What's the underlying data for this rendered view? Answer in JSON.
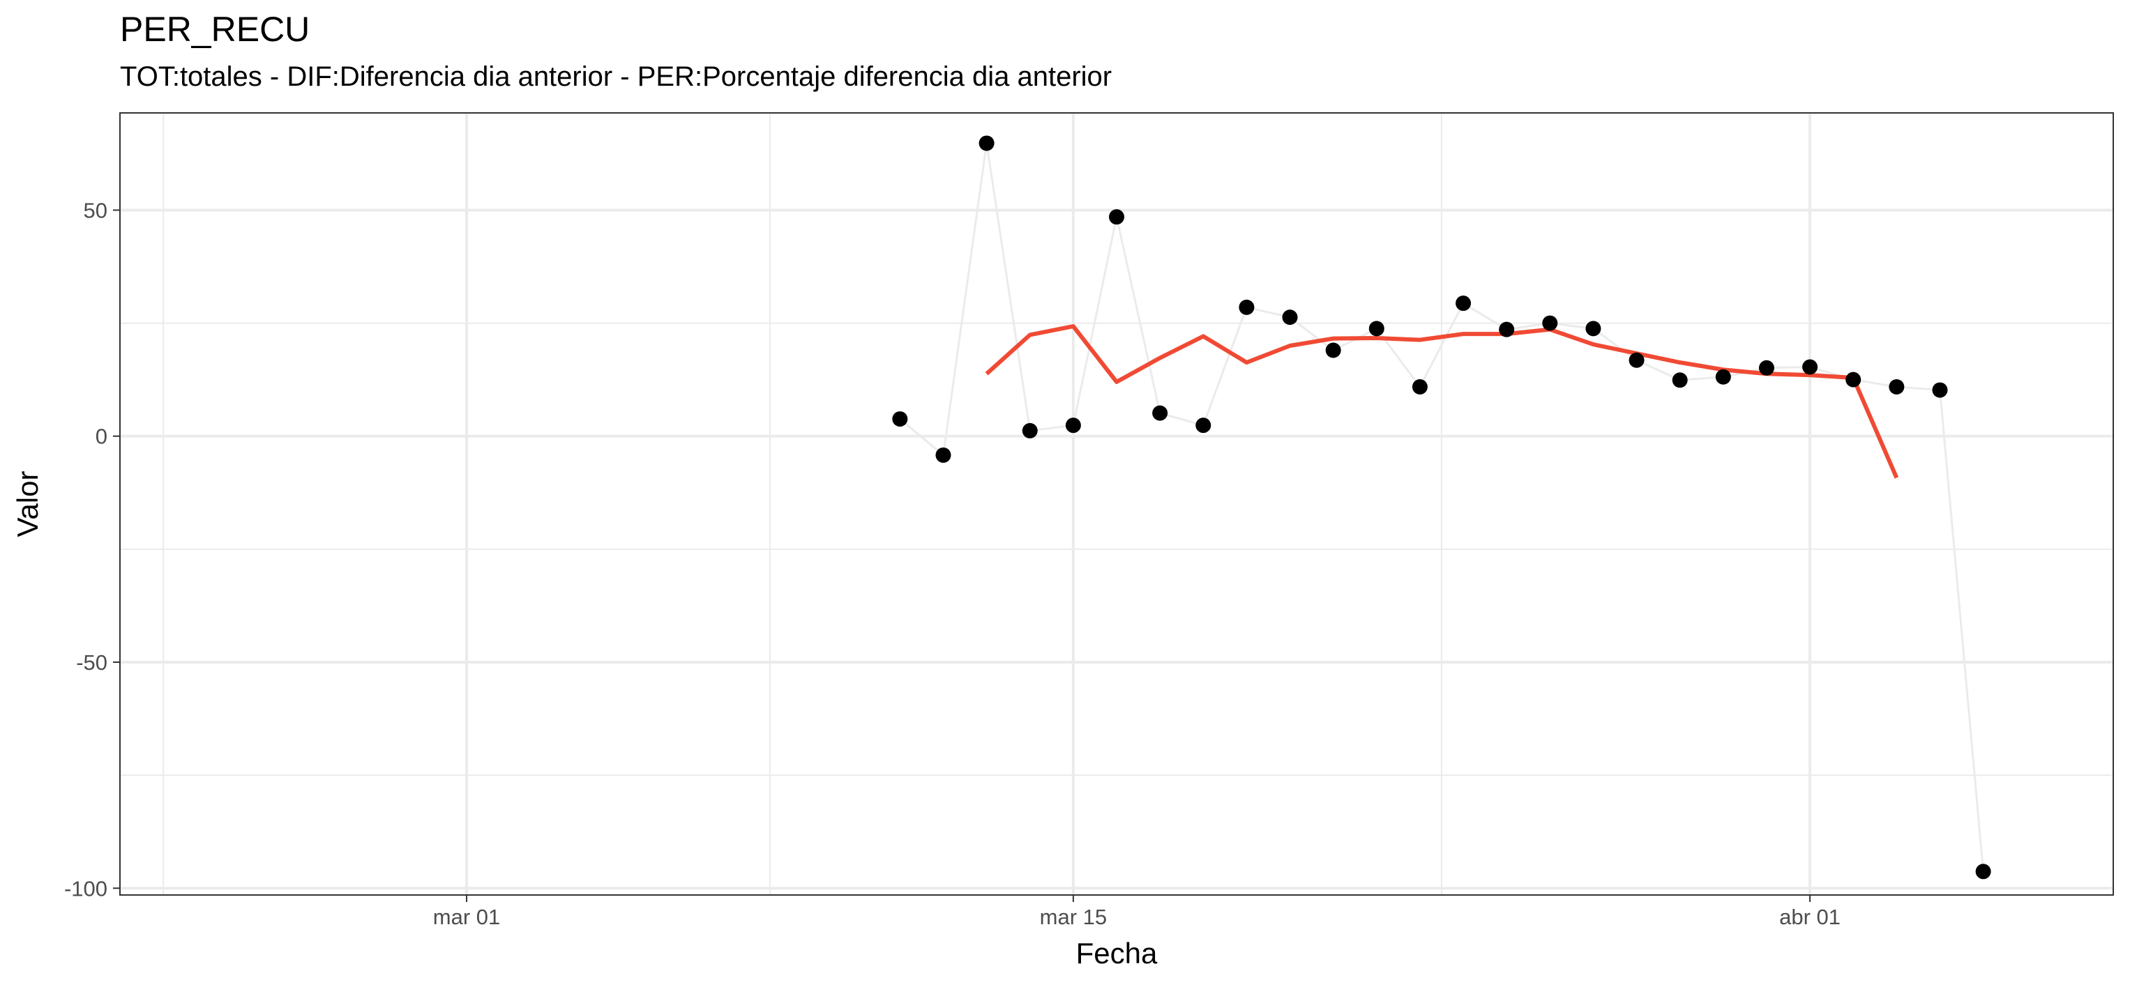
{
  "chart_data": {
    "type": "line",
    "title": "PER_RECU",
    "subtitle": "TOT:totales - DIF:Diferencia dia anterior - PER:Porcentaje diferencia dia anterior",
    "xlabel": "Fecha",
    "ylabel": "Valor",
    "x_axis": {
      "type": "date",
      "range": [
        "2020-02-22",
        "2020-04-08"
      ],
      "ticks": [
        {
          "date": "2020-03-01",
          "label": "mar 01"
        },
        {
          "date": "2020-03-15",
          "label": "mar 15"
        },
        {
          "date": "2020-04-01",
          "label": "abr 01"
        }
      ]
    },
    "y_axis": {
      "range": [
        -101.5,
        71.5
      ],
      "ticks": [
        {
          "value": 50,
          "label": "50"
        },
        {
          "value": 0,
          "label": "0"
        },
        {
          "value": -50,
          "label": "-50"
        },
        {
          "value": -100,
          "label": "-100"
        }
      ]
    },
    "grid": true,
    "colors": {
      "points": "#000000",
      "connector": "#ebebeb",
      "smooth": "#f04a34",
      "panel_border": "#333333",
      "grid": "#ebebeb"
    },
    "series": [
      {
        "kind": "points_with_line",
        "points": [
          {
            "date": "2020-03-11",
            "value": 3.8
          },
          {
            "date": "2020-03-12",
            "value": -4.2
          },
          {
            "date": "2020-03-13",
            "value": 64.8
          },
          {
            "date": "2020-03-14",
            "value": 1.2
          },
          {
            "date": "2020-03-15",
            "value": 2.4
          },
          {
            "date": "2020-03-16",
            "value": 48.5
          },
          {
            "date": "2020-03-17",
            "value": 5.1
          },
          {
            "date": "2020-03-18",
            "value": 2.4
          },
          {
            "date": "2020-03-19",
            "value": 28.5
          },
          {
            "date": "2020-03-20",
            "value": 26.3
          },
          {
            "date": "2020-03-21",
            "value": 19.0
          },
          {
            "date": "2020-03-22",
            "value": 23.8
          },
          {
            "date": "2020-03-23",
            "value": 10.9
          },
          {
            "date": "2020-03-24",
            "value": 29.4
          },
          {
            "date": "2020-03-25",
            "value": 23.6
          },
          {
            "date": "2020-03-26",
            "value": 25.0
          },
          {
            "date": "2020-03-27",
            "value": 23.8
          },
          {
            "date": "2020-03-28",
            "value": 16.8
          },
          {
            "date": "2020-03-29",
            "value": 12.4
          },
          {
            "date": "2020-03-30",
            "value": 13.1
          },
          {
            "date": "2020-03-31",
            "value": 15.1
          },
          {
            "date": "2020-04-01",
            "value": 15.3
          },
          {
            "date": "2020-04-02",
            "value": 12.5
          },
          {
            "date": "2020-04-03",
            "value": 10.9
          },
          {
            "date": "2020-04-04",
            "value": 10.2
          },
          {
            "date": "2020-04-05",
            "value": -96.3
          }
        ]
      },
      {
        "kind": "smooth_line",
        "points": [
          {
            "date": "2020-03-13",
            "value": 13.8
          },
          {
            "date": "2020-03-14",
            "value": 22.4
          },
          {
            "date": "2020-03-15",
            "value": 24.3
          },
          {
            "date": "2020-03-16",
            "value": 12.0
          },
          {
            "date": "2020-03-17",
            "value": 17.3
          },
          {
            "date": "2020-03-18",
            "value": 22.1
          },
          {
            "date": "2020-03-19",
            "value": 16.3
          },
          {
            "date": "2020-03-20",
            "value": 20.0
          },
          {
            "date": "2020-03-21",
            "value": 21.6
          },
          {
            "date": "2020-03-22",
            "value": 21.7
          },
          {
            "date": "2020-03-23",
            "value": 21.3
          },
          {
            "date": "2020-03-24",
            "value": 22.6
          },
          {
            "date": "2020-03-25",
            "value": 22.6
          },
          {
            "date": "2020-03-26",
            "value": 23.6
          },
          {
            "date": "2020-03-27",
            "value": 20.3
          },
          {
            "date": "2020-03-28",
            "value": 18.3
          },
          {
            "date": "2020-03-29",
            "value": 16.3
          },
          {
            "date": "2020-03-30",
            "value": 14.7
          },
          {
            "date": "2020-03-31",
            "value": 13.8
          },
          {
            "date": "2020-04-01",
            "value": 13.5
          },
          {
            "date": "2020-04-02",
            "value": 12.9
          },
          {
            "date": "2020-04-03",
            "value": -9.2
          }
        ]
      }
    ]
  }
}
